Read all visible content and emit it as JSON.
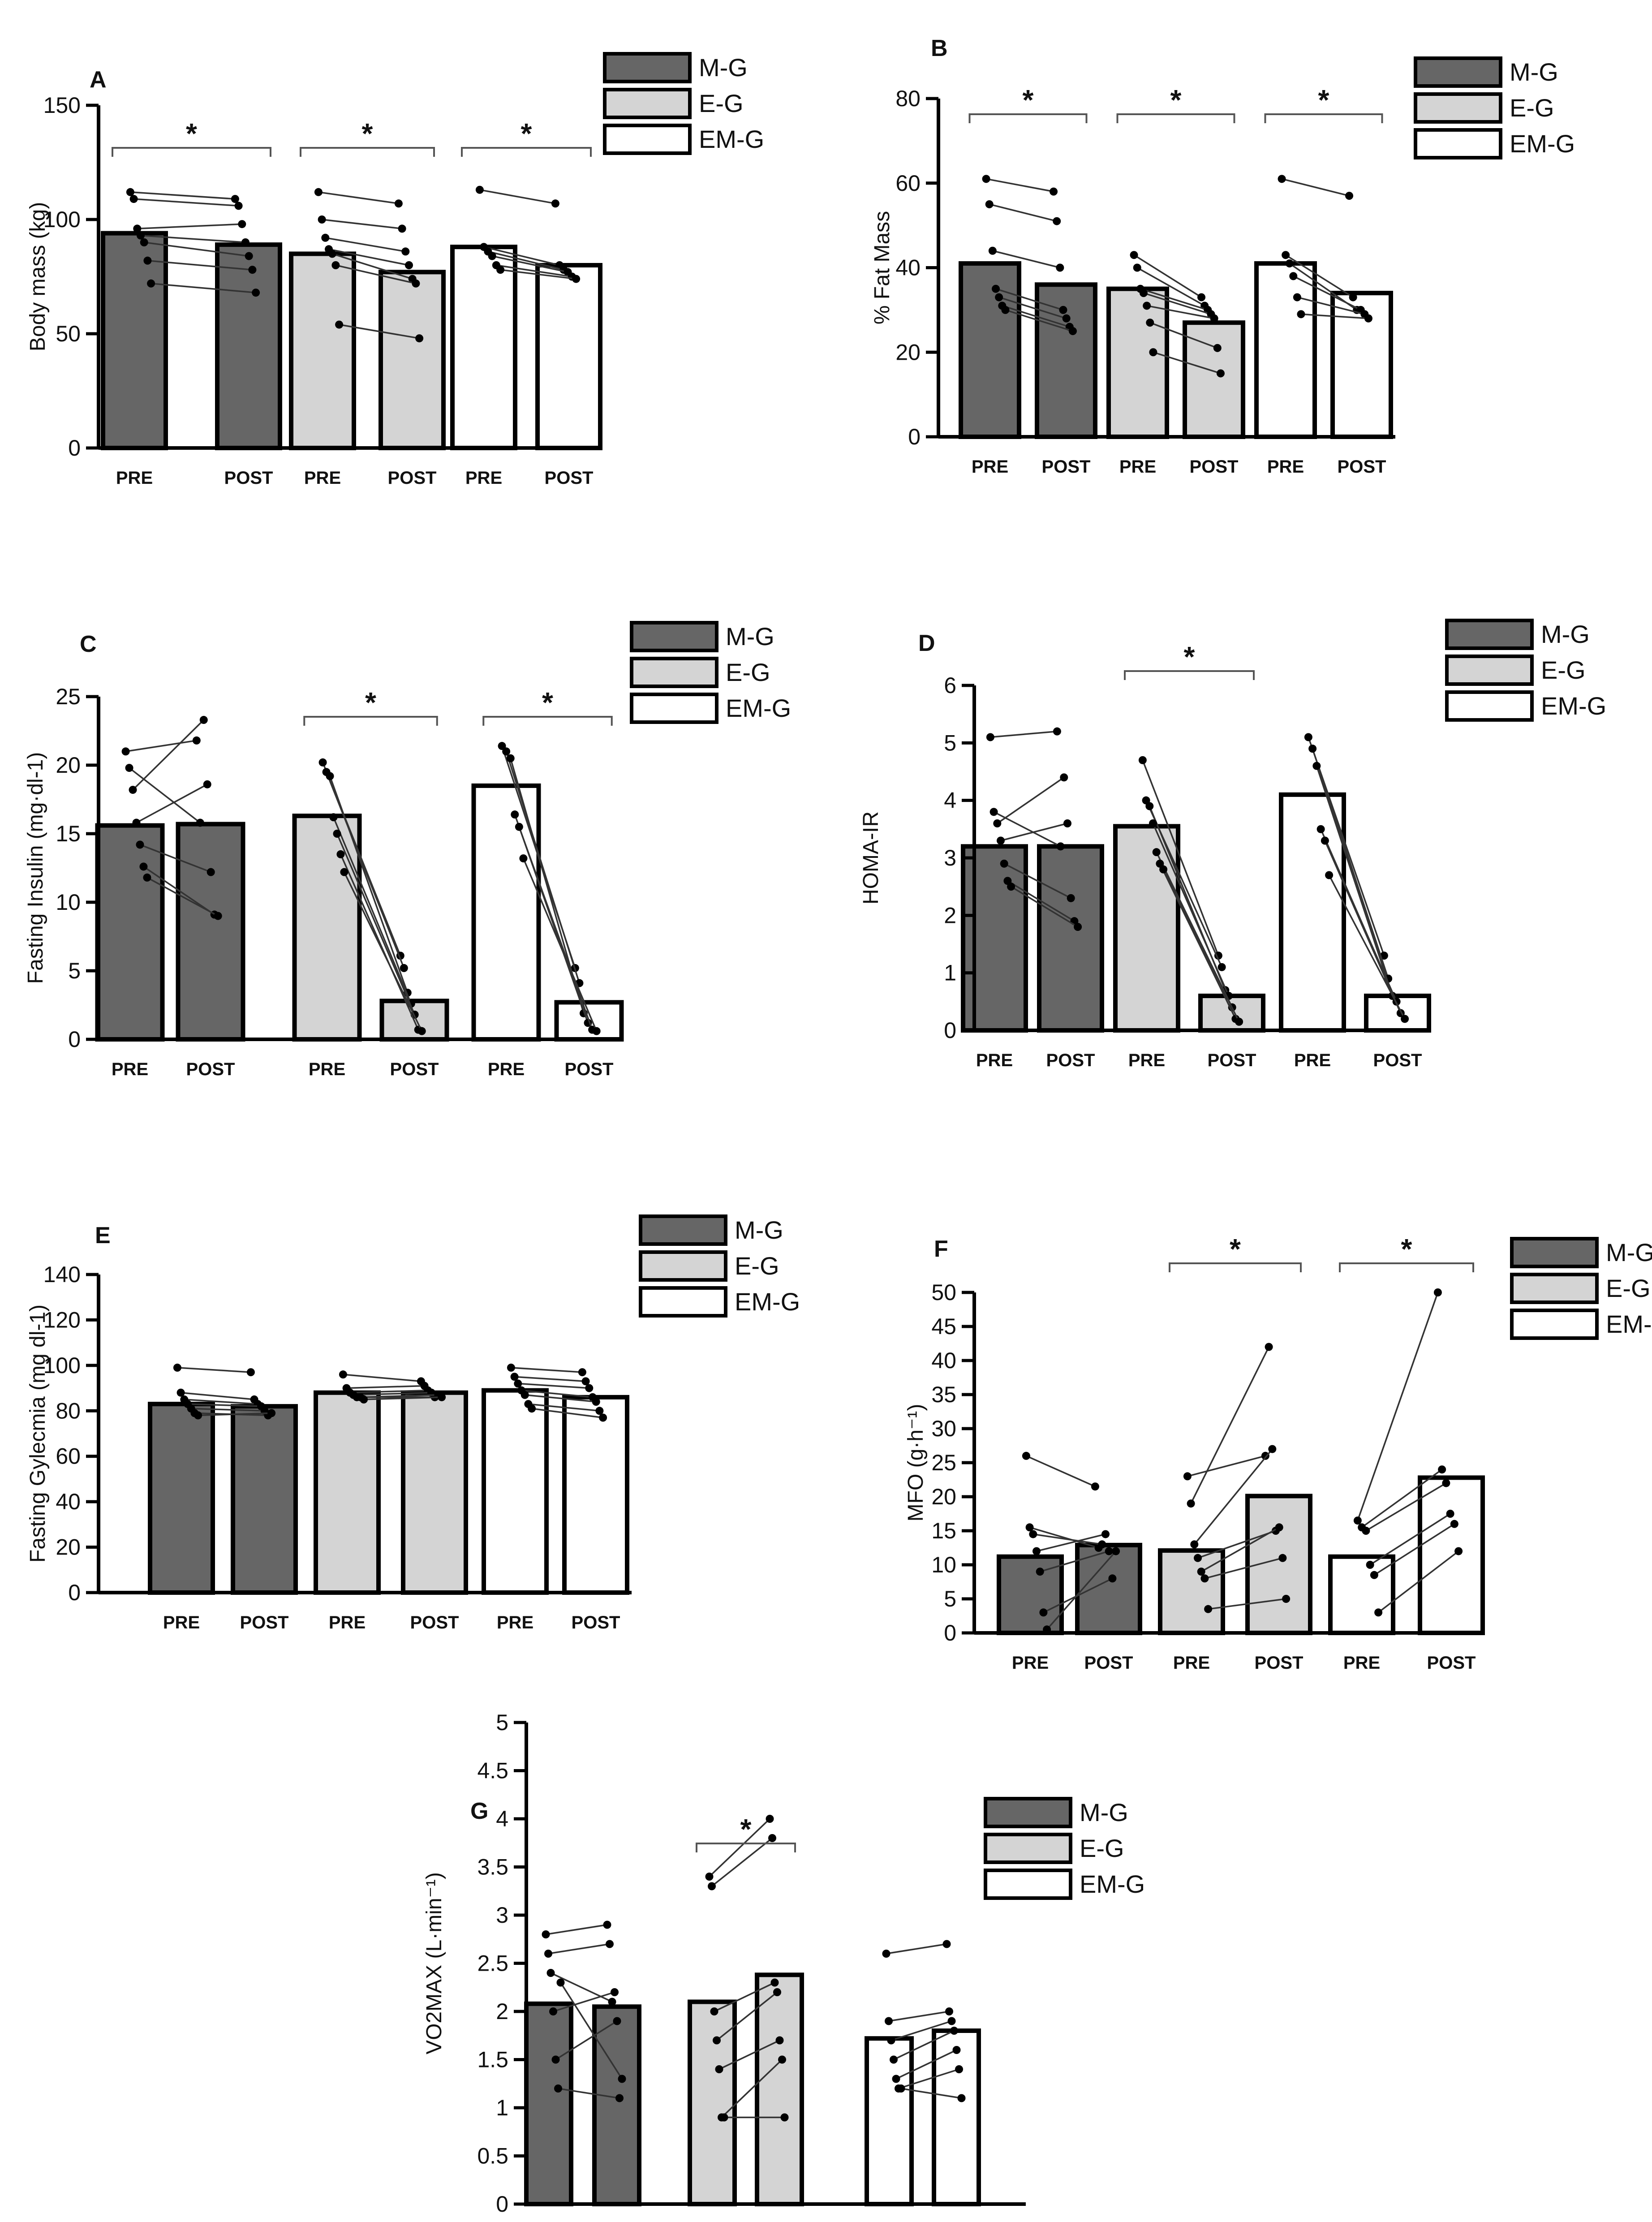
{
  "figure": {
    "groups": [
      "M-G",
      "E-G",
      "EM-G"
    ],
    "group_colors": [
      "#666666",
      "#d4d4d4",
      "#ffffff"
    ],
    "conditions": [
      "PRE",
      "POST"
    ],
    "significance_marker": "*"
  },
  "chart_data": [
    {
      "panel": "A",
      "type": "bar",
      "ylabel": "Body mass (kg)",
      "ylim": [
        0,
        150
      ],
      "yticks": [
        0,
        50,
        100,
        150
      ],
      "bar_labels": [
        "PRE",
        "POST",
        "PRE",
        "POST",
        "PRE",
        "POST"
      ],
      "legend": [
        "M-G",
        "E-G",
        "EM-G"
      ],
      "legend_placement": "top-right",
      "series": [
        {
          "name": "M-G",
          "values": [
            94,
            89
          ],
          "pairs": [
            [
              112,
              109
            ],
            [
              109,
              106
            ],
            [
              96,
              98
            ],
            [
              93,
              90
            ],
            [
              90,
              84
            ],
            [
              82,
              78
            ],
            [
              72,
              68
            ]
          ]
        },
        {
          "name": "E-G",
          "values": [
            85,
            77
          ],
          "pairs": [
            [
              112,
              107
            ],
            [
              100,
              96
            ],
            [
              92,
              86
            ],
            [
              87,
              80
            ],
            [
              85,
              74
            ],
            [
              80,
              72
            ],
            [
              54,
              48
            ]
          ]
        },
        {
          "name": "EM-G",
          "values": [
            88,
            80
          ],
          "pairs": [
            [
              113,
              107
            ],
            [
              88,
              80
            ],
            [
              86,
              78
            ],
            [
              84,
              77
            ],
            [
              80,
              75
            ],
            [
              78,
              74
            ]
          ]
        }
      ],
      "significant": [
        true,
        true,
        true
      ]
    },
    {
      "panel": "B",
      "type": "bar",
      "ylabel": "% Fat Mass",
      "ylim": [
        0,
        80
      ],
      "yticks": [
        0,
        20,
        40,
        60,
        80
      ],
      "bar_labels": [
        "PRE",
        "POST",
        "PRE",
        "POST",
        "PRE",
        "POST"
      ],
      "legend": [
        "M-G",
        "E-G",
        "EM-G"
      ],
      "legend_placement": "top-right",
      "series": [
        {
          "name": "M-G",
          "values": [
            41,
            36
          ],
          "pairs": [
            [
              61,
              58
            ],
            [
              55,
              51
            ],
            [
              44,
              40
            ],
            [
              35,
              30
            ],
            [
              33,
              28
            ],
            [
              31,
              26
            ],
            [
              30,
              25
            ]
          ]
        },
        {
          "name": "E-G",
          "values": [
            35,
            27
          ],
          "pairs": [
            [
              43,
              33
            ],
            [
              40,
              31
            ],
            [
              35,
              30
            ],
            [
              34,
              29
            ],
            [
              31,
              28
            ],
            [
              27,
              21
            ],
            [
              20,
              15
            ]
          ]
        },
        {
          "name": "EM-G",
          "values": [
            41,
            34
          ],
          "pairs": [
            [
              61,
              57
            ],
            [
              43,
              33
            ],
            [
              41,
              30
            ],
            [
              38,
              30
            ],
            [
              33,
              29
            ],
            [
              29,
              28
            ]
          ]
        }
      ],
      "significant": [
        true,
        true,
        true
      ]
    },
    {
      "panel": "C",
      "type": "bar",
      "ylabel": "Fasting Insulin (mg·dl-1)",
      "ylim": [
        0,
        25
      ],
      "yticks": [
        0,
        5,
        10,
        15,
        20,
        25
      ],
      "bar_labels": [
        "PRE",
        "POST",
        "PRE",
        "POST",
        "PRE",
        "POST"
      ],
      "legend": [
        "M-G",
        "E-G",
        "EM-G"
      ],
      "legend_placement": "top-right",
      "series": [
        {
          "name": "M-G",
          "values": [
            15.6,
            15.7
          ],
          "pairs": [
            [
              21,
              21.8
            ],
            [
              19.8,
              15.8
            ],
            [
              18.2,
              23.3
            ],
            [
              15.8,
              18.6
            ],
            [
              14.2,
              12.2
            ],
            [
              12.6,
              9.1
            ],
            [
              11.8,
              9.0
            ]
          ]
        },
        {
          "name": "E-G",
          "values": [
            16.3,
            2.8
          ],
          "pairs": [
            [
              20.2,
              6.1
            ],
            [
              19.5,
              5.2
            ],
            [
              19.2,
              3.4
            ],
            [
              16.2,
              2.6
            ],
            [
              15.0,
              1.8
            ],
            [
              13.5,
              0.7
            ],
            [
              12.2,
              0.6
            ]
          ]
        },
        {
          "name": "EM-G",
          "values": [
            18.5,
            2.7
          ],
          "pairs": [
            [
              21.4,
              5.2
            ],
            [
              21.0,
              4.1
            ],
            [
              20.5,
              1.9
            ],
            [
              16.4,
              1.2
            ],
            [
              15.5,
              0.7
            ],
            [
              13.2,
              0.6
            ]
          ]
        }
      ],
      "significant": [
        false,
        true,
        true
      ]
    },
    {
      "panel": "D",
      "type": "bar",
      "ylabel": "HOMA-IR",
      "ylim": [
        0,
        6
      ],
      "yticks": [
        0,
        1,
        2,
        3,
        4,
        5,
        6
      ],
      "bar_labels": [
        "PRE",
        "POST",
        "PRE",
        "POST",
        "PRE",
        "POST"
      ],
      "legend": [
        "M-G",
        "E-G",
        "EM-G"
      ],
      "legend_placement": "top-right",
      "series": [
        {
          "name": "M-G",
          "values": [
            3.2,
            3.2
          ],
          "pairs": [
            [
              5.1,
              5.2
            ],
            [
              3.8,
              3.2
            ],
            [
              3.6,
              4.4
            ],
            [
              3.3,
              3.6
            ],
            [
              2.9,
              2.3
            ],
            [
              2.6,
              1.9
            ],
            [
              2.5,
              1.8
            ]
          ]
        },
        {
          "name": "E-G",
          "values": [
            3.55,
            0.6
          ],
          "pairs": [
            [
              4.7,
              1.3
            ],
            [
              4.0,
              1.1
            ],
            [
              3.9,
              0.7
            ],
            [
              3.6,
              0.6
            ],
            [
              3.1,
              0.4
            ],
            [
              2.9,
              0.2
            ],
            [
              2.8,
              0.15
            ]
          ]
        },
        {
          "name": "EM-G",
          "values": [
            4.1,
            0.6
          ],
          "pairs": [
            [
              5.1,
              1.3
            ],
            [
              4.9,
              0.9
            ],
            [
              4.6,
              0.6
            ],
            [
              3.5,
              0.5
            ],
            [
              3.3,
              0.3
            ],
            [
              2.7,
              0.2
            ]
          ]
        }
      ],
      "significant": [
        false,
        true,
        false
      ]
    },
    {
      "panel": "E",
      "type": "bar",
      "ylabel": "Fasting Gylecmia (mg dl-1)",
      "ylim": [
        0,
        140
      ],
      "yticks": [
        0,
        20,
        40,
        60,
        80,
        100,
        120,
        140
      ],
      "bar_labels": [
        "PRE",
        "POST",
        "PRE",
        "POST",
        "PRE",
        "POST"
      ],
      "legend": [
        "M-G",
        "E-G",
        "EM-G"
      ],
      "legend_placement": "top-right",
      "series": [
        {
          "name": "M-G",
          "values": [
            83,
            82
          ],
          "pairs": [
            [
              99,
              97
            ],
            [
              88,
              85
            ],
            [
              85,
              83
            ],
            [
              83,
              82
            ],
            [
              81,
              80
            ],
            [
              79,
              78
            ],
            [
              78,
              79
            ]
          ]
        },
        {
          "name": "E-G",
          "values": [
            88,
            88
          ],
          "pairs": [
            [
              96,
              93
            ],
            [
              90,
              91
            ],
            [
              88,
              89
            ],
            [
              87,
              88
            ],
            [
              86,
              86
            ],
            [
              86,
              87
            ],
            [
              85,
              86
            ]
          ]
        },
        {
          "name": "EM-G",
          "values": [
            89,
            86
          ],
          "pairs": [
            [
              99,
              97
            ],
            [
              95,
              93
            ],
            [
              92,
              90
            ],
            [
              89,
              86
            ],
            [
              87,
              84
            ],
            [
              83,
              80
            ],
            [
              81,
              77
            ]
          ]
        }
      ],
      "significant": [
        false,
        false,
        false
      ]
    },
    {
      "panel": "F",
      "type": "bar",
      "ylabel": "MFO (g·h⁻¹)",
      "ylim": [
        0,
        50
      ],
      "yticks": [
        0,
        5,
        10,
        15,
        20,
        25,
        30,
        35,
        40,
        45,
        50
      ],
      "bar_labels": [
        "PRE",
        "POST",
        "PRE",
        "POST",
        "PRE",
        "POST"
      ],
      "legend": [
        "M-G",
        "E-G",
        "EM-G"
      ],
      "legend_placement": "top-right",
      "series": [
        {
          "name": "M-G",
          "values": [
            11.2,
            12.9
          ],
          "pairs": [
            [
              26,
              21.5
            ],
            [
              15.5,
              12.5
            ],
            [
              14.5,
              13.0
            ],
            [
              12.0,
              14.5
            ],
            [
              9.0,
              12.0
            ],
            [
              3.0,
              8.0
            ],
            [
              0.5,
              12.0
            ]
          ]
        },
        {
          "name": "E-G",
          "values": [
            12.1,
            20.1
          ],
          "pairs": [
            [
              23,
              26
            ],
            [
              19,
              42
            ],
            [
              13,
              27
            ],
            [
              11,
              15
            ],
            [
              9,
              15.5
            ],
            [
              8.0,
              11
            ],
            [
              3.5,
              5.0
            ]
          ]
        },
        {
          "name": "EM-G",
          "values": [
            11.2,
            22.8
          ],
          "pairs": [
            [
              16.5,
              50
            ],
            [
              15.5,
              24
            ],
            [
              15.0,
              22
            ],
            [
              10.0,
              17.5
            ],
            [
              8.5,
              16
            ],
            [
              3.0,
              12
            ]
          ]
        }
      ],
      "significant": [
        false,
        true,
        true
      ]
    },
    {
      "panel": "G",
      "type": "bar",
      "ylabel": "VO2MAX (L·min⁻¹)",
      "ylim": [
        0,
        5
      ],
      "yticks": [
        0.0,
        0.5,
        1.0,
        1.5,
        2.0,
        2.5,
        3.0,
        3.5,
        4.0,
        4.5,
        5.0
      ],
      "bar_labels": [
        "PRE",
        "POST",
        "PRE",
        "POST",
        "PRE",
        "POST"
      ],
      "legend": [
        "M-G",
        "E-G",
        "EM-G"
      ],
      "legend_placement": "top-right",
      "series": [
        {
          "name": "M-G",
          "values": [
            2.08,
            2.05
          ],
          "pairs": [
            [
              2.8,
              2.9
            ],
            [
              2.6,
              2.7
            ],
            [
              2.4,
              2.1
            ],
            [
              2.0,
              2.2
            ],
            [
              1.5,
              1.9
            ],
            [
              1.2,
              1.1
            ],
            [
              2.3,
              1.3
            ]
          ]
        },
        {
          "name": "E-G",
          "values": [
            2.1,
            2.38
          ],
          "pairs": [
            [
              3.4,
              4.0
            ],
            [
              3.3,
              3.8
            ],
            [
              2.0,
              2.3
            ],
            [
              1.7,
              2.2
            ],
            [
              1.4,
              1.7
            ],
            [
              0.9,
              1.5
            ],
            [
              0.9,
              0.9
            ]
          ]
        },
        {
          "name": "EM-G",
          "values": [
            1.72,
            1.8
          ],
          "pairs": [
            [
              2.6,
              2.7
            ],
            [
              1.9,
              2.0
            ],
            [
              1.7,
              1.9
            ],
            [
              1.5,
              1.8
            ],
            [
              1.3,
              1.6
            ],
            [
              1.2,
              1.4
            ],
            [
              1.2,
              1.1
            ]
          ]
        }
      ],
      "significant": [
        false,
        true,
        false
      ]
    }
  ]
}
